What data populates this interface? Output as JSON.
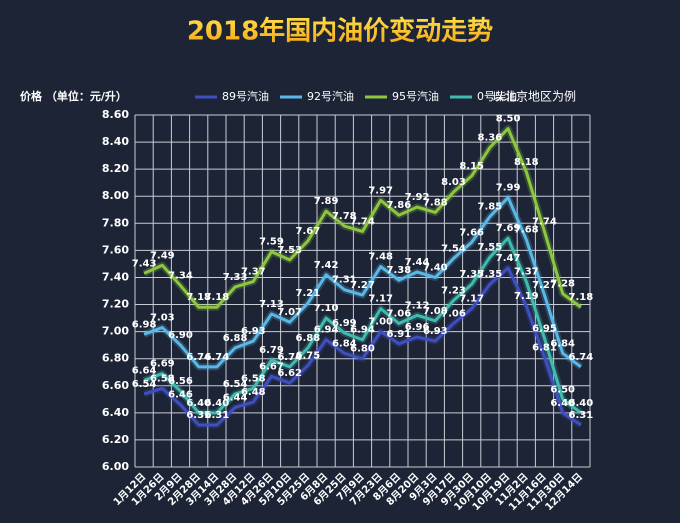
{
  "chart_data": {
    "type": "line",
    "title": "2018年国内油价变动走势",
    "y_label": "价格 （单位：元/升）",
    "note": "以北京地区为例",
    "categories": [
      "1月12日",
      "1月26日",
      "2月9日",
      "2月28日",
      "3月14日",
      "3月28日",
      "4月12日",
      "4月26日",
      "5月10日",
      "5月25日",
      "6月8日",
      "6月25日",
      "7月9日",
      "7月23日",
      "8月6日",
      "8月20日",
      "9月3日",
      "9月17日",
      "9月30日",
      "10月10日",
      "10月19日",
      "11月2日",
      "11月16日",
      "11月30日",
      "12月14日"
    ],
    "series": [
      {
        "name": "89号汽油",
        "color": "#3f4fc0",
        "values": [
          6.54,
          6.58,
          6.46,
          6.31,
          6.31,
          6.44,
          6.48,
          6.67,
          6.62,
          6.75,
          6.94,
          6.84,
          6.8,
          7.0,
          6.91,
          6.96,
          6.93,
          7.06,
          7.17,
          7.35,
          7.47,
          7.19,
          6.81,
          6.4,
          6.31
        ],
        "value_labels": [
          "6.54",
          "6.58",
          "6.46",
          "6.31",
          "6.31",
          "6.44",
          "6.48",
          "6.67",
          "6.62",
          "6.75",
          "6.94",
          "6.84",
          "6.80",
          "7.00",
          "6.91",
          "6.96",
          "6.93",
          "7.06",
          "7.17",
          "7.35",
          "7.47",
          "7.19",
          "6.81",
          "6.40",
          "6.31"
        ]
      },
      {
        "name": "92号汽油",
        "color": "#5ab8e6",
        "values": [
          6.98,
          7.03,
          6.9,
          6.74,
          6.74,
          6.88,
          6.93,
          7.13,
          7.07,
          7.21,
          7.42,
          7.31,
          7.27,
          7.48,
          7.38,
          7.44,
          7.4,
          7.54,
          7.66,
          7.85,
          7.99,
          7.68,
          7.27,
          6.84,
          6.74
        ],
        "value_labels": [
          "6.98",
          "7.03",
          "6.90",
          "6.74",
          "6.74",
          "6.88",
          "6.93",
          "7.13",
          "7.07",
          "7.21",
          "7.42",
          "7.31",
          "7.27",
          "7.48",
          "7.38",
          "7.44",
          "7.40",
          "7.54",
          "7.66",
          "7.85",
          "7.99",
          "7.68",
          "7.27",
          "6.84",
          "6.74"
        ]
      },
      {
        "name": "95号汽油",
        "color": "#8dc63f",
        "values": [
          7.43,
          7.49,
          7.34,
          7.18,
          7.18,
          7.33,
          7.37,
          7.59,
          7.53,
          7.67,
          7.89,
          7.78,
          7.74,
          7.97,
          7.86,
          7.92,
          7.88,
          8.03,
          8.15,
          8.36,
          8.5,
          8.18,
          7.74,
          7.28,
          7.18
        ],
        "value_labels": [
          "7.43",
          "7.49",
          "7.34",
          "7.18",
          "7.18",
          "7.33",
          "7.37",
          "7.59",
          "7.53",
          "7.67",
          "7.89",
          "7.78",
          "7.74",
          "7.97",
          "7.86",
          "7.92",
          "7.88",
          "8.03",
          "8.15",
          "8.36",
          "8.50",
          "8.18",
          "7.74",
          "7.28",
          "7.18"
        ]
      },
      {
        "name": "0号柴油",
        "color": "#3fbcae",
        "values": [
          6.64,
          6.69,
          6.56,
          6.4,
          6.4,
          6.54,
          6.58,
          6.79,
          6.74,
          6.88,
          7.1,
          6.99,
          6.94,
          7.17,
          7.06,
          7.12,
          7.08,
          7.23,
          7.35,
          7.55,
          7.69,
          7.37,
          6.95,
          6.5,
          6.4
        ],
        "value_labels": [
          "6.64",
          "6.69",
          "6.56",
          "6.40",
          "6.40",
          "6.54",
          "6.58",
          "6.79",
          "6.74",
          "6.88",
          "7.10",
          "6.99",
          "6.94",
          "7.17",
          "7.06",
          "7.12",
          "7.08",
          "7.23",
          "7.35",
          "7.55",
          "7.69",
          "7.37",
          "6.95",
          "6.50",
          "6.40"
        ]
      }
    ],
    "ylim": [
      6.0,
      8.6
    ],
    "yticks": [
      {
        "value": 6.0,
        "label": "6.00"
      },
      {
        "value": 6.2,
        "label": "6.20"
      },
      {
        "value": 6.4,
        "label": "6.40"
      },
      {
        "value": 6.6,
        "label": "6.60"
      },
      {
        "value": 6.8,
        "label": "6.80"
      },
      {
        "value": 7.0,
        "label": "7.00"
      },
      {
        "value": 7.2,
        "label": "7.20"
      },
      {
        "value": 7.4,
        "label": "7.40"
      },
      {
        "value": 7.6,
        "label": "7.60"
      },
      {
        "value": 7.8,
        "label": "7.80"
      },
      {
        "value": 8.0,
        "label": "8.00"
      },
      {
        "value": 8.2,
        "label": "8.20"
      },
      {
        "value": 8.4,
        "label": "8.40"
      },
      {
        "value": 8.6,
        "label": "8.60"
      }
    ],
    "grid": true
  }
}
